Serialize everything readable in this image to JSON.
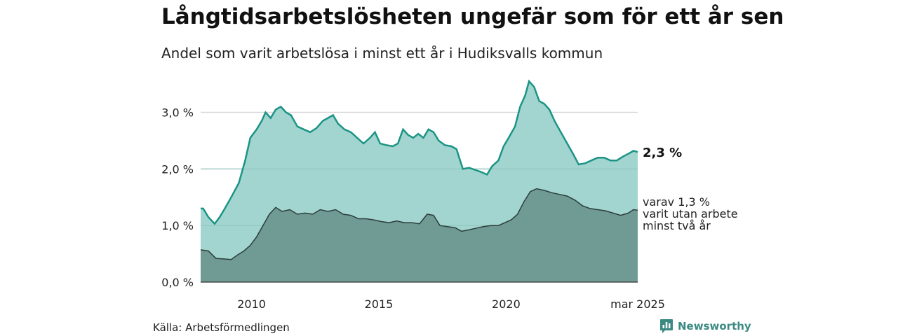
{
  "header": {
    "title": "Långtidsarbetslösheten ungefär som för ett år sen",
    "subtitle": "Andel som varit arbetslösa i minst ett år i Hudiksvalls kommun"
  },
  "footer": {
    "source": "Källa: Arbetsförmedlingen",
    "brand": "Newsworthy",
    "brand_icon": "bar-chart-logo-icon"
  },
  "colors": {
    "series1_fill": "#a3d5d0",
    "series1_line": "#1b9485",
    "series2_fill": "#6f9b94",
    "series2_line": "#2c3e3b",
    "grid": "#d9d9d9",
    "brand": "#3a8a82"
  },
  "chart_data": {
    "type": "area",
    "x_axis": {
      "ticks": [
        {
          "x": 2010.0,
          "label": "2010"
        },
        {
          "x": 2015.0,
          "label": "2015"
        },
        {
          "x": 2020.0,
          "label": "2020"
        },
        {
          "x": 2025.17,
          "label": "mar 2025"
        }
      ],
      "range": [
        2008.0,
        2025.17
      ]
    },
    "y_axis": {
      "ticks": [
        {
          "y": 0,
          "label": "0,0 %"
        },
        {
          "y": 1,
          "label": "1,0 %"
        },
        {
          "y": 2,
          "label": "2,0 %"
        },
        {
          "y": 3,
          "label": "3,0 %"
        }
      ],
      "range": [
        0,
        3.6
      ]
    },
    "grid": true,
    "series": [
      {
        "label_value": "2,3 %",
        "points": [
          [
            2008.0,
            1.3
          ],
          [
            2008.1,
            1.3
          ],
          [
            2008.3,
            1.15
          ],
          [
            2008.55,
            1.03
          ],
          [
            2008.75,
            1.15
          ],
          [
            2008.95,
            1.3
          ],
          [
            2009.2,
            1.5
          ],
          [
            2009.5,
            1.75
          ],
          [
            2009.75,
            2.15
          ],
          [
            2009.95,
            2.55
          ],
          [
            2010.2,
            2.7
          ],
          [
            2010.4,
            2.85
          ],
          [
            2010.55,
            3.0
          ],
          [
            2010.75,
            2.9
          ],
          [
            2010.95,
            3.05
          ],
          [
            2011.15,
            3.1
          ],
          [
            2011.35,
            3.0
          ],
          [
            2011.55,
            2.95
          ],
          [
            2011.8,
            2.75
          ],
          [
            2012.05,
            2.7
          ],
          [
            2012.3,
            2.65
          ],
          [
            2012.55,
            2.72
          ],
          [
            2012.8,
            2.85
          ],
          [
            2013.0,
            2.9
          ],
          [
            2013.2,
            2.95
          ],
          [
            2013.4,
            2.8
          ],
          [
            2013.65,
            2.7
          ],
          [
            2013.9,
            2.65
          ],
          [
            2014.15,
            2.55
          ],
          [
            2014.4,
            2.45
          ],
          [
            2014.65,
            2.55
          ],
          [
            2014.85,
            2.65
          ],
          [
            2015.05,
            2.45
          ],
          [
            2015.3,
            2.42
          ],
          [
            2015.55,
            2.4
          ],
          [
            2015.75,
            2.45
          ],
          [
            2015.95,
            2.7
          ],
          [
            2016.15,
            2.6
          ],
          [
            2016.35,
            2.55
          ],
          [
            2016.55,
            2.62
          ],
          [
            2016.75,
            2.55
          ],
          [
            2016.95,
            2.7
          ],
          [
            2017.15,
            2.65
          ],
          [
            2017.35,
            2.5
          ],
          [
            2017.6,
            2.42
          ],
          [
            2017.85,
            2.4
          ],
          [
            2018.05,
            2.35
          ],
          [
            2018.3,
            2.0
          ],
          [
            2018.55,
            2.02
          ],
          [
            2018.8,
            1.98
          ],
          [
            2019.0,
            1.95
          ],
          [
            2019.25,
            1.9
          ],
          [
            2019.45,
            2.05
          ],
          [
            2019.7,
            2.15
          ],
          [
            2019.9,
            2.4
          ],
          [
            2020.1,
            2.55
          ],
          [
            2020.35,
            2.75
          ],
          [
            2020.55,
            3.1
          ],
          [
            2020.75,
            3.3
          ],
          [
            2020.9,
            3.55
          ],
          [
            2021.1,
            3.45
          ],
          [
            2021.3,
            3.2
          ],
          [
            2021.5,
            3.15
          ],
          [
            2021.7,
            3.05
          ],
          [
            2021.9,
            2.85
          ],
          [
            2022.15,
            2.65
          ],
          [
            2022.4,
            2.45
          ],
          [
            2022.65,
            2.25
          ],
          [
            2022.85,
            2.08
          ],
          [
            2023.1,
            2.1
          ],
          [
            2023.35,
            2.15
          ],
          [
            2023.6,
            2.2
          ],
          [
            2023.85,
            2.2
          ],
          [
            2024.1,
            2.15
          ],
          [
            2024.35,
            2.15
          ],
          [
            2024.6,
            2.22
          ],
          [
            2024.85,
            2.28
          ],
          [
            2025.0,
            2.32
          ],
          [
            2025.17,
            2.3
          ]
        ]
      },
      {
        "label_lines": [
          "varav 1,3 %",
          "varit utan arbete",
          "minst två år"
        ],
        "points": [
          [
            2008.0,
            0.57
          ],
          [
            2008.3,
            0.55
          ],
          [
            2008.6,
            0.42
          ],
          [
            2008.9,
            0.41
          ],
          [
            2009.2,
            0.4
          ],
          [
            2009.45,
            0.48
          ],
          [
            2009.7,
            0.55
          ],
          [
            2009.95,
            0.65
          ],
          [
            2010.2,
            0.8
          ],
          [
            2010.45,
            1.0
          ],
          [
            2010.7,
            1.2
          ],
          [
            2010.95,
            1.32
          ],
          [
            2011.2,
            1.25
          ],
          [
            2011.5,
            1.28
          ],
          [
            2011.8,
            1.2
          ],
          [
            2012.1,
            1.22
          ],
          [
            2012.4,
            1.2
          ],
          [
            2012.7,
            1.28
          ],
          [
            2013.0,
            1.25
          ],
          [
            2013.3,
            1.28
          ],
          [
            2013.6,
            1.2
          ],
          [
            2013.9,
            1.18
          ],
          [
            2014.2,
            1.12
          ],
          [
            2014.5,
            1.12
          ],
          [
            2014.8,
            1.1
          ],
          [
            2015.1,
            1.07
          ],
          [
            2015.4,
            1.05
          ],
          [
            2015.7,
            1.08
          ],
          [
            2016.0,
            1.05
          ],
          [
            2016.3,
            1.05
          ],
          [
            2016.6,
            1.03
          ],
          [
            2016.9,
            1.2
          ],
          [
            2017.15,
            1.18
          ],
          [
            2017.4,
            1.0
          ],
          [
            2017.7,
            0.98
          ],
          [
            2018.0,
            0.96
          ],
          [
            2018.25,
            0.9
          ],
          [
            2018.5,
            0.92
          ],
          [
            2018.8,
            0.95
          ],
          [
            2019.1,
            0.98
          ],
          [
            2019.4,
            1.0
          ],
          [
            2019.7,
            1.0
          ],
          [
            2019.95,
            1.05
          ],
          [
            2020.2,
            1.1
          ],
          [
            2020.45,
            1.2
          ],
          [
            2020.7,
            1.42
          ],
          [
            2020.95,
            1.6
          ],
          [
            2021.2,
            1.65
          ],
          [
            2021.5,
            1.62
          ],
          [
            2021.8,
            1.58
          ],
          [
            2022.1,
            1.55
          ],
          [
            2022.4,
            1.52
          ],
          [
            2022.7,
            1.45
          ],
          [
            2023.0,
            1.35
          ],
          [
            2023.3,
            1.3
          ],
          [
            2023.6,
            1.28
          ],
          [
            2023.9,
            1.26
          ],
          [
            2024.2,
            1.22
          ],
          [
            2024.5,
            1.18
          ],
          [
            2024.8,
            1.22
          ],
          [
            2025.0,
            1.28
          ],
          [
            2025.17,
            1.27
          ]
        ]
      }
    ]
  }
}
